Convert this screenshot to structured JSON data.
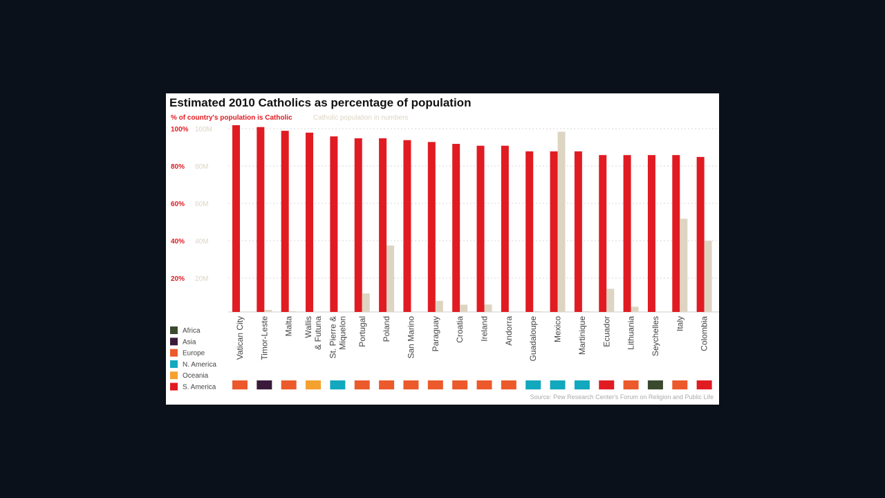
{
  "chart_data": {
    "type": "bar",
    "title": "Estimated 2010 Catholics as percentage of population",
    "subtitle_percent": "% of country's population is Catholic",
    "subtitle_numbers": "Catholic population in numbers",
    "categories": [
      "Vatican City",
      "Timor-Leste",
      "Malta",
      "Wallis\n& Futuna",
      "St. Pierre &\nMiquelon",
      "Portugal",
      "Poland",
      "San Marino",
      "Paraguay",
      "Croatia",
      "Ireland",
      "Andorra",
      "Guadaloupe",
      "Mexico",
      "Martinique",
      "Ecuador",
      "Lithuania",
      "Seychelles",
      "Italy",
      "Colombia"
    ],
    "series": [
      {
        "name": "% of country's population is Catholic",
        "unit": "%",
        "color": "#e11b22",
        "values": [
          100,
          99,
          97,
          96,
          94,
          93,
          93,
          92,
          91,
          90,
          89,
          89,
          86,
          86,
          86,
          84,
          84,
          84,
          84,
          83
        ]
      },
      {
        "name": "Catholic population in numbers",
        "unit": "M",
        "color": "#ddd5c2",
        "values": [
          0.001,
          1.1,
          0.4,
          0.01,
          0.006,
          9.9,
          35.6,
          0.03,
          5.9,
          3.9,
          4.0,
          0.07,
          0.4,
          96.5,
          0.35,
          12.4,
          2.8,
          0.07,
          49.9,
          38.1
        ]
      }
    ],
    "y_left": {
      "ticks": [
        "20%",
        "40%",
        "60%",
        "80%",
        "100%"
      ],
      "range": [
        0,
        100
      ]
    },
    "y_right": {
      "ticks": [
        "20M",
        "40M",
        "60M",
        "80M",
        "100M"
      ],
      "range": [
        0,
        100
      ]
    },
    "regions": [
      "Europe",
      "Asia",
      "Europe",
      "Oceania",
      "N. America",
      "Europe",
      "Europe",
      "Europe",
      "Europe",
      "Europe",
      "Europe",
      "Europe",
      "N. America",
      "N. America",
      "N. America",
      "S. America",
      "Europe",
      "Africa",
      "Europe",
      "S. America"
    ],
    "grid": true
  },
  "legend": [
    {
      "label": "Africa",
      "color": "#3a4a2e"
    },
    {
      "label": "Asia",
      "color": "#3a1a3a"
    },
    {
      "label": "Europe",
      "color": "#ec5a2c"
    },
    {
      "label": "N. America",
      "color": "#12a8be"
    },
    {
      "label": "Oceania",
      "color": "#f4a12e"
    },
    {
      "label": "S. America",
      "color": "#e11b22"
    }
  ],
  "source": "Source:  Pew Research Center's Forum on Religion and Public Life"
}
